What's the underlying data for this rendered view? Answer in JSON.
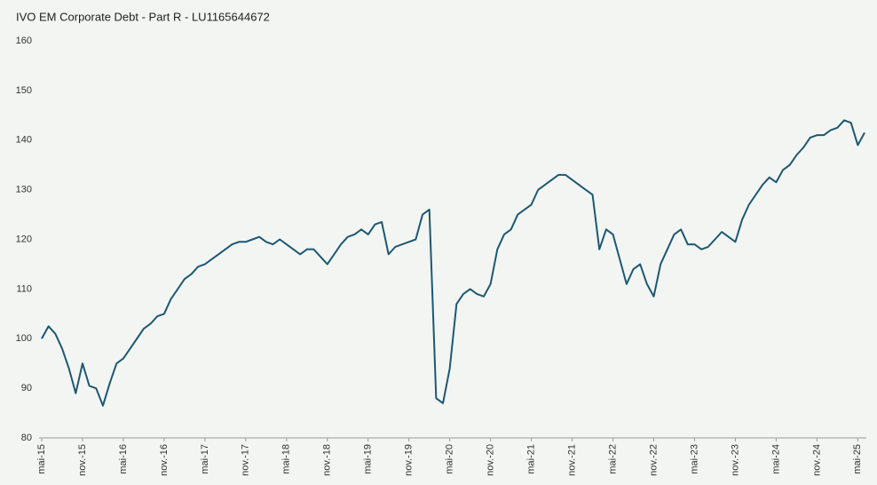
{
  "chart_data": {
    "type": "line",
    "title": "IVO EM Corporate Debt - Part R - LU1165644672",
    "color": "#1d5873",
    "x": [
      "2015-05",
      "2015-06",
      "2015-07",
      "2015-08",
      "2015-09",
      "2015-10",
      "2015-11",
      "2015-12",
      "2016-01",
      "2016-02",
      "2016-03",
      "2016-04",
      "2016-05",
      "2016-06",
      "2016-07",
      "2016-08",
      "2016-09",
      "2016-10",
      "2016-11",
      "2016-12",
      "2017-01",
      "2017-02",
      "2017-03",
      "2017-04",
      "2017-05",
      "2017-06",
      "2017-07",
      "2017-08",
      "2017-09",
      "2017-10",
      "2017-11",
      "2017-12",
      "2018-01",
      "2018-02",
      "2018-03",
      "2018-04",
      "2018-05",
      "2018-06",
      "2018-07",
      "2018-08",
      "2018-09",
      "2018-10",
      "2018-11",
      "2018-12",
      "2019-01",
      "2019-02",
      "2019-03",
      "2019-04",
      "2019-05",
      "2019-06",
      "2019-07",
      "2019-08",
      "2019-09",
      "2019-10",
      "2019-11",
      "2019-12",
      "2020-01",
      "2020-02",
      "2020-03",
      "2020-04",
      "2020-05",
      "2020-06",
      "2020-07",
      "2020-08",
      "2020-09",
      "2020-10",
      "2020-11",
      "2020-12",
      "2021-01",
      "2021-02",
      "2021-03",
      "2021-04",
      "2021-05",
      "2021-06",
      "2021-07",
      "2021-08",
      "2021-09",
      "2021-10",
      "2021-11",
      "2021-12",
      "2022-01",
      "2022-02",
      "2022-03",
      "2022-04",
      "2022-05",
      "2022-06",
      "2022-07",
      "2022-08",
      "2022-09",
      "2022-10",
      "2022-11",
      "2022-12",
      "2023-01",
      "2023-02",
      "2023-03",
      "2023-04",
      "2023-05",
      "2023-06",
      "2023-07",
      "2023-08",
      "2023-09",
      "2023-10",
      "2023-11",
      "2023-12",
      "2024-01",
      "2024-02",
      "2024-03",
      "2024-04",
      "2024-05",
      "2024-06",
      "2024-07",
      "2024-08",
      "2024-09",
      "2024-10",
      "2024-11",
      "2024-12",
      "2025-01",
      "2025-02",
      "2025-03",
      "2025-04",
      "2025-05",
      "2025-06"
    ],
    "values": [
      100,
      102.5,
      101,
      98,
      94,
      89,
      95,
      90.5,
      90,
      86.5,
      91,
      95,
      96,
      98,
      100,
      102,
      103,
      104.5,
      105,
      108,
      110,
      112,
      113,
      114.5,
      115,
      116,
      117,
      118,
      119,
      119.5,
      119.5,
      120,
      120.5,
      119.5,
      119,
      120,
      119,
      118,
      117,
      118,
      118,
      116.5,
      115,
      117,
      119,
      120.5,
      121,
      122,
      121,
      123,
      123.5,
      117,
      118.5,
      119,
      119.5,
      120,
      125,
      126,
      88,
      87,
      94,
      107,
      109,
      110,
      109,
      108.5,
      111,
      118,
      121,
      122,
      125,
      126,
      127,
      130,
      131,
      132,
      133,
      133,
      132,
      131,
      130,
      129,
      118,
      122,
      121,
      116,
      111,
      114,
      115,
      111,
      108.5,
      115,
      118,
      121,
      122,
      119,
      119,
      118,
      118.5,
      120,
      121.5,
      120.5,
      119.5,
      124,
      127,
      129,
      131,
      132.5,
      131.5,
      134,
      135,
      137,
      138.5,
      140.5,
      141,
      141,
      142,
      142.5,
      144,
      143.5,
      139,
      141.5
    ],
    "xlim": [
      "2015-05",
      "2025-06"
    ],
    "xticks": [
      {
        "value": "2015-05",
        "label": "mai-15"
      },
      {
        "value": "2015-11",
        "label": "nov.-15"
      },
      {
        "value": "2016-05",
        "label": "mai-16"
      },
      {
        "value": "2016-11",
        "label": "nov.-16"
      },
      {
        "value": "2017-05",
        "label": "mai-17"
      },
      {
        "value": "2017-11",
        "label": "nov.-17"
      },
      {
        "value": "2018-05",
        "label": "mai-18"
      },
      {
        "value": "2018-11",
        "label": "nov.-18"
      },
      {
        "value": "2019-05",
        "label": "mai-19"
      },
      {
        "value": "2019-11",
        "label": "nov.-19"
      },
      {
        "value": "2020-05",
        "label": "mai-20"
      },
      {
        "value": "2020-11",
        "label": "nov.-20"
      },
      {
        "value": "2021-05",
        "label": "mai-21"
      },
      {
        "value": "2021-11",
        "label": "nov.-21"
      },
      {
        "value": "2022-05",
        "label": "mai-22"
      },
      {
        "value": "2022-11",
        "label": "nov.-22"
      },
      {
        "value": "2023-05",
        "label": "mai-23"
      },
      {
        "value": "2023-11",
        "label": "nov.-23"
      },
      {
        "value": "2024-05",
        "label": "mai-24"
      },
      {
        "value": "2024-11",
        "label": "nov.-24"
      },
      {
        "value": "2025-05",
        "label": "mai-25"
      }
    ],
    "ylim": [
      80,
      160
    ],
    "yticks": [
      80,
      90,
      100,
      110,
      120,
      130,
      140,
      150,
      160
    ],
    "grid": false
  }
}
